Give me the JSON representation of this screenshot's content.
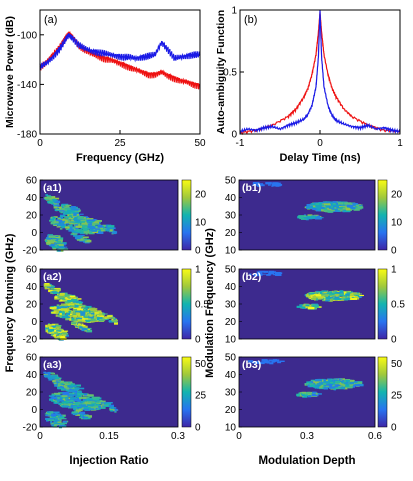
{
  "figure": {
    "colors": {
      "series_red": "#ee1111",
      "series_blue": "#1a1ae6",
      "map_low": "#3d2a8e",
      "map_mid": "#12b3b0",
      "map_high": "#f9fb15",
      "axis": "#000000"
    }
  },
  "chart_data": [
    {
      "id": "a",
      "type": "line",
      "panel_label": "(a)",
      "xlabel": "Frequency (GHz)",
      "ylabel": "Microwave Power (dB)",
      "xlim": [
        0,
        50
      ],
      "ylim": [
        -180,
        -80
      ],
      "xticks": [
        "0",
        "25",
        "50"
      ],
      "yticks": [
        "-100",
        "-140",
        "-180"
      ],
      "grid": false,
      "series": [
        {
          "color": "#ee1111",
          "x": [
            0,
            2,
            4,
            6,
            8,
            9,
            10,
            12,
            14,
            16,
            18,
            20,
            22,
            24,
            26,
            28,
            30,
            32,
            34,
            36,
            38,
            40,
            42,
            44,
            46,
            48,
            50
          ],
          "y": [
            -126,
            -122,
            -116,
            -110,
            -102,
            -99,
            -101,
            -108,
            -112,
            -115,
            -117,
            -119,
            -120,
            -122,
            -124,
            -126,
            -128,
            -130,
            -132,
            -132,
            -130,
            -133,
            -135,
            -137,
            -138,
            -140,
            -141
          ]
        },
        {
          "color": "#1a1ae6",
          "x": [
            0,
            2,
            4,
            6,
            8,
            9,
            10,
            12,
            14,
            16,
            18,
            20,
            22,
            24,
            26,
            28,
            30,
            32,
            34,
            36,
            38,
            40,
            42,
            44,
            46,
            48,
            50
          ],
          "y": [
            -126,
            -123,
            -118,
            -112,
            -104,
            -100,
            -102,
            -108,
            -111,
            -113,
            -114,
            -115,
            -116,
            -117,
            -118,
            -118,
            -119,
            -118,
            -117,
            -116,
            -106,
            -112,
            -119,
            -118,
            -117,
            -116,
            -116
          ]
        }
      ]
    },
    {
      "id": "b",
      "type": "line",
      "panel_label": "(b)",
      "xlabel": "Delay Time (ns)",
      "ylabel": "Auto-ambiguity Function",
      "xlim": [
        -1,
        1
      ],
      "ylim": [
        0,
        1
      ],
      "xticks": [
        "-1",
        "0",
        "1"
      ],
      "yticks": [
        "1",
        "0.5",
        "0"
      ],
      "grid": false,
      "series": [
        {
          "color": "#ee1111",
          "x": [
            -1,
            -0.8,
            -0.6,
            -0.4,
            -0.3,
            -0.2,
            -0.15,
            -0.1,
            -0.05,
            -0.02,
            0,
            0.02,
            0.05,
            0.1,
            0.15,
            0.2,
            0.3,
            0.4,
            0.6,
            0.8,
            1
          ],
          "y": [
            0.01,
            0.03,
            0.07,
            0.14,
            0.2,
            0.3,
            0.37,
            0.48,
            0.64,
            0.82,
            0.98,
            0.82,
            0.64,
            0.48,
            0.37,
            0.3,
            0.2,
            0.14,
            0.07,
            0.03,
            0.02
          ]
        },
        {
          "color": "#1a1ae6",
          "x": [
            -1,
            -0.9,
            -0.8,
            -0.7,
            -0.6,
            -0.5,
            -0.4,
            -0.3,
            -0.2,
            -0.15,
            -0.1,
            -0.05,
            -0.02,
            0,
            0.02,
            0.05,
            0.1,
            0.15,
            0.2,
            0.3,
            0.4,
            0.5,
            0.6,
            0.7,
            0.8,
            0.9,
            1
          ],
          "y": [
            0.02,
            0.04,
            0.03,
            0.05,
            0.06,
            0.04,
            0.07,
            0.09,
            0.12,
            0.16,
            0.23,
            0.38,
            0.62,
            1.0,
            0.62,
            0.38,
            0.23,
            0.15,
            0.11,
            0.08,
            0.06,
            0.05,
            0.07,
            0.04,
            0.05,
            0.03,
            0.02
          ]
        }
      ]
    },
    {
      "id": "heatmaps",
      "type": "heatmap",
      "left": {
        "xlabel": "Injection Ratio",
        "ylabel": "Frequency Detuning (GHz)",
        "xlim": [
          0,
          0.3
        ],
        "ylim": [
          -20,
          60
        ],
        "xticks": [
          "0",
          "0.15",
          "0.3"
        ],
        "yticks": [
          "60",
          "40",
          "20",
          "0",
          "-20"
        ]
      },
      "right": {
        "xlabel": "Modulation Depth",
        "ylabel": "Modulation Frequency (GHz)",
        "xlim": [
          0,
          0.6
        ],
        "ylim": [
          10,
          50
        ],
        "xticks": [
          "0",
          "0.3",
          "0.6"
        ],
        "yticks": [
          "50",
          "40",
          "30",
          "20",
          "10"
        ]
      },
      "panels": [
        {
          "label": "(a1)",
          "colorbar_ticks": [
            "20",
            "10",
            "0"
          ],
          "cmax": 25
        },
        {
          "label": "(a2)",
          "colorbar_ticks": [
            "1",
            "0.5",
            "0"
          ],
          "cmax": 1
        },
        {
          "label": "(a3)",
          "colorbar_ticks": [
            "50",
            "25",
            "0"
          ],
          "cmax": 55
        },
        {
          "label": "(b1)",
          "colorbar_ticks": [
            "20",
            "10",
            "0"
          ],
          "cmax": 25
        },
        {
          "label": "(b2)",
          "colorbar_ticks": [
            "1",
            "0.5",
            "0"
          ],
          "cmax": 1
        },
        {
          "label": "(b3)",
          "colorbar_ticks": [
            "50",
            "25",
            "0"
          ],
          "cmax": 55
        }
      ]
    }
  ]
}
